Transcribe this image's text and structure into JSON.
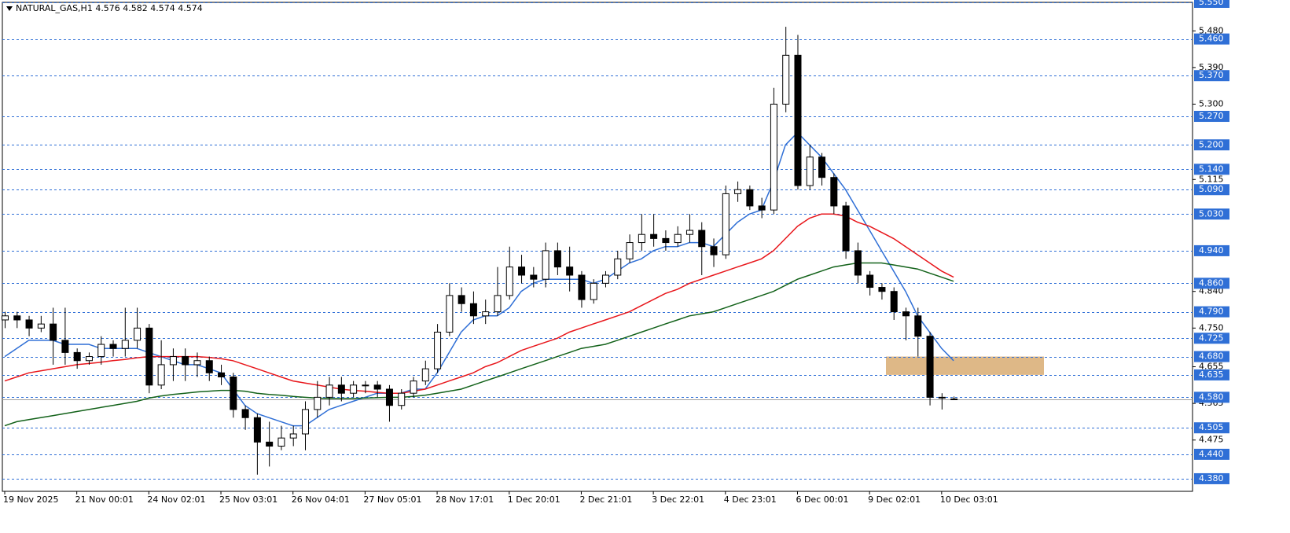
{
  "chart_data": {
    "type": "candlestick",
    "title": "NATURAL_GAS,H1  4.576 4.582 4.574 4.574",
    "categories": [
      "19 Nov 2025",
      null,
      null,
      null,
      null,
      null,
      "21 Nov 00:01",
      null,
      null,
      null,
      null,
      null,
      "24 Nov 02:01",
      null,
      null,
      null,
      null,
      null,
      "25 Nov 03:01",
      null,
      null,
      null,
      null,
      null,
      "26 Nov 04:01",
      null,
      null,
      null,
      null,
      null,
      "27 Nov 05:01",
      null,
      null,
      null,
      null,
      null,
      "28 Nov 17:01",
      null,
      null,
      null,
      null,
      null,
      "1 Dec 20:01",
      null,
      null,
      null,
      null,
      null,
      "2 Dec 21:01",
      null,
      null,
      null,
      null,
      null,
      "3 Dec 22:01",
      null,
      null,
      null,
      null,
      null,
      "4 Dec 23:01",
      null,
      null,
      null,
      null,
      null,
      "6 Dec 00:01",
      null,
      null,
      null,
      null,
      null,
      "9 Dec 02:01",
      null,
      null,
      null,
      null,
      null,
      "10 Dec 03:01",
      null
    ],
    "open": [
      4.77,
      4.78,
      4.77,
      4.75,
      4.76,
      4.72,
      4.69,
      4.67,
      4.68,
      4.71,
      4.7,
      4.72,
      4.75,
      4.61,
      4.66,
      4.68,
      4.66,
      4.67,
      4.64,
      4.63,
      4.55,
      4.53,
      4.47,
      4.46,
      4.48,
      4.49,
      4.55,
      4.58,
      4.61,
      4.59,
      4.61,
      4.61,
      4.6,
      4.56,
      4.59,
      4.62,
      4.65,
      4.74,
      4.83,
      4.81,
      4.78,
      4.79,
      4.83,
      4.9,
      4.88,
      4.87,
      4.94,
      4.9,
      4.88,
      4.82,
      4.86,
      4.88,
      4.92,
      4.96,
      4.98,
      4.97,
      4.96,
      4.98,
      4.99,
      4.95,
      4.93,
      5.08,
      5.09,
      5.05,
      5.04,
      5.3,
      5.42,
      5.1,
      5.17,
      5.12,
      5.05,
      4.94,
      4.88,
      4.85,
      4.84,
      4.79,
      4.78,
      4.73,
      4.58,
      4.576
    ],
    "high": [
      4.79,
      4.79,
      4.78,
      4.78,
      4.8,
      4.8,
      4.7,
      4.69,
      4.73,
      4.72,
      4.8,
      4.8,
      4.76,
      4.72,
      4.7,
      4.7,
      4.69,
      4.68,
      4.66,
      4.64,
      4.56,
      4.54,
      4.52,
      4.51,
      4.51,
      4.57,
      4.62,
      4.63,
      4.63,
      4.62,
      4.62,
      4.62,
      4.61,
      4.6,
      4.63,
      4.67,
      4.76,
      4.86,
      4.85,
      4.84,
      4.82,
      4.9,
      4.95,
      4.93,
      4.9,
      4.96,
      4.96,
      4.95,
      4.89,
      4.87,
      4.89,
      4.94,
      4.98,
      5.03,
      5.03,
      4.99,
      5.0,
      5.03,
      5.01,
      4.97,
      5.1,
      5.11,
      5.1,
      5.07,
      5.34,
      5.49,
      5.47,
      5.2,
      5.18,
      5.13,
      5.06,
      4.96,
      4.89,
      4.86,
      4.85,
      4.8,
      4.8,
      4.74,
      4.59,
      4.582
    ],
    "low": [
      4.75,
      4.75,
      4.73,
      4.74,
      4.66,
      4.66,
      4.65,
      4.66,
      4.66,
      4.68,
      4.68,
      4.7,
      4.59,
      4.6,
      4.62,
      4.62,
      4.63,
      4.62,
      4.61,
      4.53,
      4.5,
      4.39,
      4.41,
      4.45,
      4.46,
      4.45,
      4.53,
      4.56,
      4.57,
      4.58,
      4.59,
      4.58,
      4.52,
      4.55,
      4.58,
      4.61,
      4.64,
      4.73,
      4.79,
      4.76,
      4.76,
      4.78,
      4.82,
      4.86,
      4.85,
      4.85,
      4.88,
      4.84,
      4.8,
      4.81,
      4.85,
      4.87,
      4.91,
      4.94,
      4.95,
      4.94,
      4.95,
      4.96,
      4.88,
      4.9,
      4.92,
      5.06,
      5.04,
      5.02,
      5.03,
      5.28,
      5.09,
      5.09,
      5.1,
      5.03,
      4.92,
      4.86,
      4.83,
      4.82,
      4.77,
      4.72,
      4.68,
      4.56,
      4.55,
      4.574
    ],
    "close": [
      4.78,
      4.77,
      4.75,
      4.76,
      4.72,
      4.69,
      4.67,
      4.68,
      4.71,
      4.7,
      4.72,
      4.75,
      4.61,
      4.66,
      4.68,
      4.66,
      4.67,
      4.64,
      4.63,
      4.55,
      4.53,
      4.47,
      4.46,
      4.48,
      4.49,
      4.55,
      4.58,
      4.61,
      4.59,
      4.61,
      4.61,
      4.6,
      4.56,
      4.59,
      4.62,
      4.65,
      4.74,
      4.83,
      4.81,
      4.78,
      4.79,
      4.83,
      4.9,
      4.88,
      4.87,
      4.94,
      4.9,
      4.88,
      4.82,
      4.86,
      4.88,
      4.92,
      4.96,
      4.98,
      4.97,
      4.96,
      4.98,
      4.99,
      4.95,
      4.93,
      5.08,
      5.09,
      5.05,
      5.04,
      5.3,
      5.42,
      5.1,
      5.17,
      5.12,
      5.05,
      4.94,
      4.88,
      4.85,
      4.84,
      4.79,
      4.78,
      4.73,
      4.58,
      4.58,
      4.574
    ],
    "lines": [
      {
        "color": "#2f6fd6",
        "values": [
          4.68,
          4.7,
          4.72,
          4.72,
          4.72,
          4.71,
          4.71,
          4.71,
          4.7,
          4.7,
          4.7,
          4.7,
          4.69,
          4.68,
          4.67,
          4.66,
          4.66,
          4.65,
          4.64,
          4.6,
          4.56,
          4.54,
          4.53,
          4.52,
          4.51,
          4.51,
          4.53,
          4.55,
          4.56,
          4.57,
          4.58,
          4.59,
          4.59,
          4.59,
          4.6,
          4.6,
          4.64,
          4.69,
          4.74,
          4.77,
          4.78,
          4.78,
          4.8,
          4.84,
          4.86,
          4.87,
          4.87,
          4.87,
          4.87,
          4.86,
          4.87,
          4.89,
          4.91,
          4.92,
          4.94,
          4.95,
          4.95,
          4.96,
          4.96,
          4.95,
          4.98,
          5.01,
          5.03,
          5.04,
          5.11,
          5.2,
          5.23,
          5.2,
          5.17,
          5.13,
          5.09,
          5.04,
          4.99,
          4.94,
          4.89,
          4.84,
          4.78,
          4.74,
          4.7,
          4.67
        ]
      },
      {
        "color": "#e8161b",
        "values": [
          4.62,
          4.63,
          4.64,
          4.645,
          4.65,
          4.655,
          4.66,
          4.663,
          4.666,
          4.67,
          4.673,
          4.677,
          4.68,
          4.68,
          4.68,
          4.68,
          4.68,
          4.678,
          4.675,
          4.67,
          4.66,
          4.65,
          4.64,
          4.63,
          4.62,
          4.615,
          4.61,
          4.605,
          4.6,
          4.597,
          4.595,
          4.592,
          4.59,
          4.59,
          4.595,
          4.6,
          4.61,
          4.62,
          4.63,
          4.64,
          4.655,
          4.665,
          4.68,
          4.695,
          4.705,
          4.715,
          4.725,
          4.74,
          4.75,
          4.76,
          4.77,
          4.78,
          4.79,
          4.805,
          4.82,
          4.835,
          4.845,
          4.86,
          4.87,
          4.88,
          4.89,
          4.9,
          4.91,
          4.92,
          4.94,
          4.97,
          5.0,
          5.02,
          5.03,
          5.03,
          5.025,
          5.01,
          5.0,
          4.985,
          4.97,
          4.95,
          4.93,
          4.91,
          4.89,
          4.875
        ]
      },
      {
        "color": "#13621a",
        "values": [
          4.51,
          4.52,
          4.525,
          4.53,
          4.535,
          4.54,
          4.545,
          4.55,
          4.555,
          4.56,
          4.565,
          4.57,
          4.578,
          4.583,
          4.587,
          4.59,
          4.593,
          4.595,
          4.597,
          4.597,
          4.595,
          4.59,
          4.587,
          4.585,
          4.582,
          4.58,
          4.578,
          4.577,
          4.577,
          4.577,
          4.578,
          4.579,
          4.58,
          4.58,
          4.582,
          4.585,
          4.59,
          4.595,
          4.6,
          4.61,
          4.62,
          4.63,
          4.64,
          4.65,
          4.66,
          4.67,
          4.68,
          4.69,
          4.7,
          4.705,
          4.71,
          4.72,
          4.73,
          4.74,
          4.75,
          4.76,
          4.77,
          4.78,
          4.785,
          4.79,
          4.8,
          4.81,
          4.82,
          4.83,
          4.84,
          4.855,
          4.87,
          4.88,
          4.89,
          4.9,
          4.905,
          4.91,
          4.91,
          4.91,
          4.905,
          4.9,
          4.895,
          4.885,
          4.875,
          4.865
        ]
      }
    ],
    "levels": [
      {
        "value": 5.55,
        "label": "5.550"
      },
      {
        "value": 5.46,
        "label": "5.460"
      },
      {
        "value": 5.37,
        "label": "5.370"
      },
      {
        "value": 5.27,
        "label": "5.270"
      },
      {
        "value": 5.2,
        "label": "5.200"
      },
      {
        "value": 5.14,
        "label": "5.140"
      },
      {
        "value": 5.09,
        "label": "5.090"
      },
      {
        "value": 5.03,
        "label": "5.030"
      },
      {
        "value": 4.94,
        "label": "4.940"
      },
      {
        "value": 4.86,
        "label": "4.860"
      },
      {
        "value": 4.79,
        "label": "4.790"
      },
      {
        "value": 4.725,
        "label": "4.725"
      },
      {
        "value": 4.68,
        "label": "4.680"
      },
      {
        "value": 4.635,
        "label": "4.635"
      },
      {
        "value": 4.58,
        "label": "4.580"
      },
      {
        "value": 4.505,
        "label": "4.505"
      },
      {
        "value": 4.44,
        "label": "4.440"
      },
      {
        "value": 4.38,
        "label": "4.380"
      }
    ],
    "level_color": "#2f6fd6",
    "zone": {
      "from": 4.635,
      "to": 4.68,
      "color": "#deb887"
    },
    "ylim": [
      4.349,
      5.55
    ],
    "yticks": [
      {
        "value": 5.48,
        "label": "5.480"
      },
      {
        "value": 5.39,
        "label": "5.390"
      },
      {
        "value": 5.3,
        "label": "5.300"
      },
      {
        "value": 5.115,
        "label": "5.115"
      },
      {
        "value": 4.84,
        "label": "4.840"
      },
      {
        "value": 4.75,
        "label": "4.750"
      },
      {
        "value": 4.655,
        "label": "4.655"
      },
      {
        "value": 4.565,
        "label": "4.565"
      },
      {
        "value": 4.475,
        "label": "4.475"
      }
    ]
  }
}
